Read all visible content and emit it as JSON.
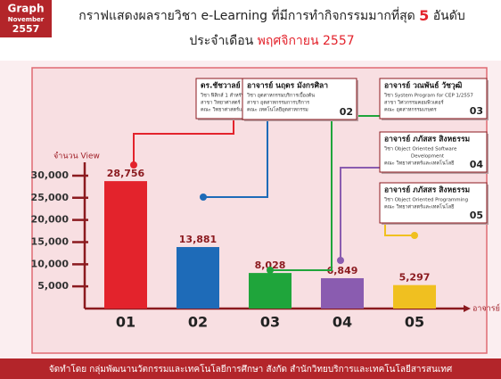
{
  "badge": [
    "Graph",
    "November",
    "2557"
  ],
  "chart_data": {
    "type": "bar",
    "title": [
      "กราฟแสดงผลรายวิชา e-Learning ที่มีการทำกิจกรรมมากที่สุด",
      "5",
      "อันดับ"
    ],
    "subtitle": [
      "ประจำเดือน",
      "พฤศจิกายน 2557"
    ],
    "y_label": "จำนวน View",
    "x_label": "อาจารย์",
    "categories": [
      "01",
      "02",
      "03",
      "04",
      "05"
    ],
    "values": [
      28756,
      13881,
      8028,
      6849,
      5297
    ],
    "value_labels": [
      "28,756",
      "13,881",
      "8,028",
      "6,849",
      "5,297"
    ],
    "colors": [
      "#e3232c",
      "#1e6bb8",
      "#1fa53b",
      "#8a5cb0",
      "#f0c020"
    ],
    "ylim": [
      0,
      32000
    ],
    "yticks": [
      {
        "value": 5000,
        "label": "5,000"
      },
      {
        "value": 10000,
        "label": "10,000"
      },
      {
        "value": 15000,
        "label": "15,000"
      },
      {
        "value": 20000,
        "label": "20,000"
      },
      {
        "value": 25000,
        "label": "25,000"
      },
      {
        "value": 30000,
        "label": "30,000"
      }
    ]
  },
  "callouts": [
    {
      "name": "ดร.ชัชวาลย์ ศรีภักดี",
      "lines": [
        "วิชา ฟิสิกส์ 1 สำหรับวิศวกร",
        "สาขา วิทยาศาสตร์",
        "คณะ วิทยาศาสตร์และเทคโนโลยี"
      ],
      "number": "01"
    },
    {
      "name": "อาจารย์ นฤดร มังกรศิลา",
      "lines": [
        "วิชา อุตสาหกรรมบริการเบื้องต้น",
        "สาขา อุตสาหกรรมการบริการ",
        "คณะ เทคโนโลยีอุตสาหกรรม"
      ],
      "number": "02"
    },
    {
      "name": "อาจารย์ วณพันธ์ วัชวุฒิ",
      "lines": [
        "วิชา System Program for CEP 1/2557",
        "สาขา วิศวกรรมคอมพิวเตอร์",
        "คณะ อุตสาหกรรมเกษตร"
      ],
      "number": "03"
    },
    {
      "name": "อาจารย์ ภภัสสร สิงหธรรม",
      "lines": [
        "วิชา Object Oriented Software",
        "Development",
        "คณะ วิทยาศาสตร์และเทคโนโลยี"
      ],
      "number": "04"
    },
    {
      "name": "อาจารย์ ภภัสสร สิงหธรรม",
      "lines": [
        "วิชา Object Oriented Programming",
        "คณะ วิทยาศาสตร์และเทคโนโลยี"
      ],
      "number": "05"
    }
  ],
  "footer": "จัดทำโดย กลุ่มพัฒนานวัตกรรมและเทคโนโลยีการศึกษา สังกัด สำนักวิทยบริการและเทคโนโลยีสารสนเทศ"
}
